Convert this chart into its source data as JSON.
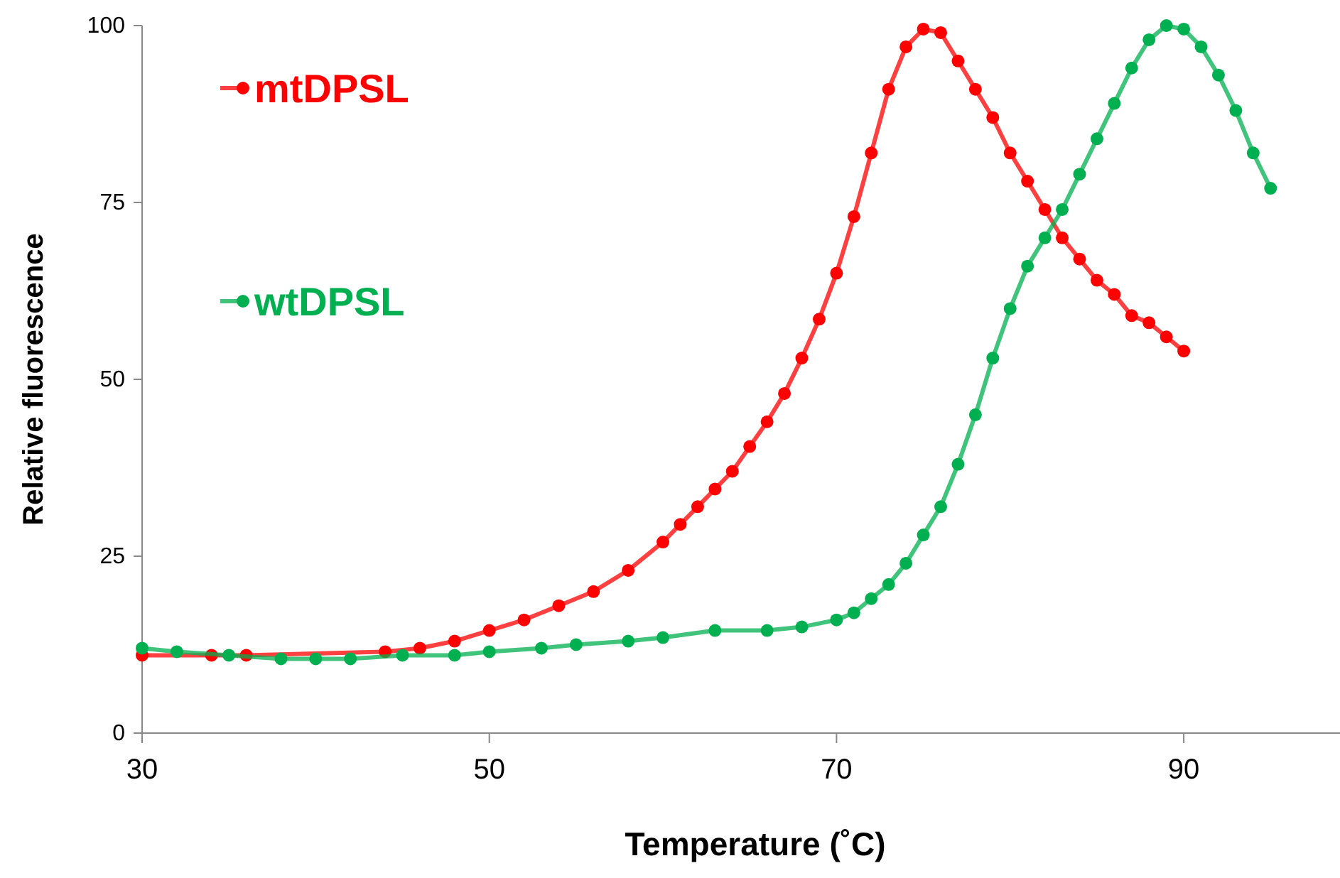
{
  "chart_data": {
    "type": "line",
    "xlabel": "Temperature (˚C)",
    "ylabel": "Relative fluorescence",
    "xlim": [
      30,
      99
    ],
    "xticks": [
      30,
      50,
      70,
      90
    ],
    "ylim": [
      0,
      100
    ],
    "yticks": [
      0,
      25,
      50,
      75,
      100
    ],
    "grid": false,
    "legend": "top left",
    "marker": "circle",
    "line_style": "solid",
    "series": [
      {
        "name": "mtDPSL",
        "color": "#ff0000",
        "x": [
          30,
          32,
          34,
          36,
          38,
          40,
          42,
          44,
          46,
          48,
          50,
          52,
          54,
          56,
          58,
          60,
          61,
          62,
          63,
          64,
          65,
          66,
          67,
          68,
          69,
          70,
          71,
          72,
          73,
          74,
          75,
          76,
          77,
          78,
          79,
          80,
          81,
          82,
          83,
          84,
          85,
          86,
          87,
          88,
          89,
          90
        ],
        "values": [
          11,
          null,
          11,
          11,
          null,
          null,
          null,
          11.5,
          12,
          13,
          14.5,
          16,
          18,
          20,
          23,
          27,
          29.5,
          32,
          34.5,
          37,
          40.5,
          44,
          48,
          53,
          58.5,
          65,
          73,
          82,
          91,
          97,
          99.5,
          99,
          95,
          91,
          87,
          82,
          78,
          74,
          70,
          67,
          64,
          62,
          59,
          58,
          56,
          54
        ]
      },
      {
        "name": "wtDPSL",
        "color": "#00b050",
        "x": [
          30,
          32,
          35,
          38,
          40,
          42,
          45,
          48,
          50,
          53,
          55,
          58,
          60,
          63,
          66,
          68,
          70,
          71,
          72,
          73,
          74,
          75,
          76,
          77,
          78,
          79,
          80,
          81,
          82,
          83,
          84,
          85,
          86,
          87,
          88,
          89,
          90,
          91,
          92,
          93,
          94,
          95
        ],
        "values": [
          12,
          11.5,
          11,
          10.5,
          10.5,
          10.5,
          11,
          11,
          11.5,
          12,
          12.5,
          13,
          13.5,
          14.5,
          14.5,
          15,
          16,
          17,
          19,
          21,
          24,
          28,
          32,
          38,
          45,
          53,
          60,
          66,
          70,
          74,
          79,
          84,
          89,
          94,
          98,
          100,
          99.5,
          97,
          93,
          88,
          82,
          77
        ]
      }
    ]
  }
}
